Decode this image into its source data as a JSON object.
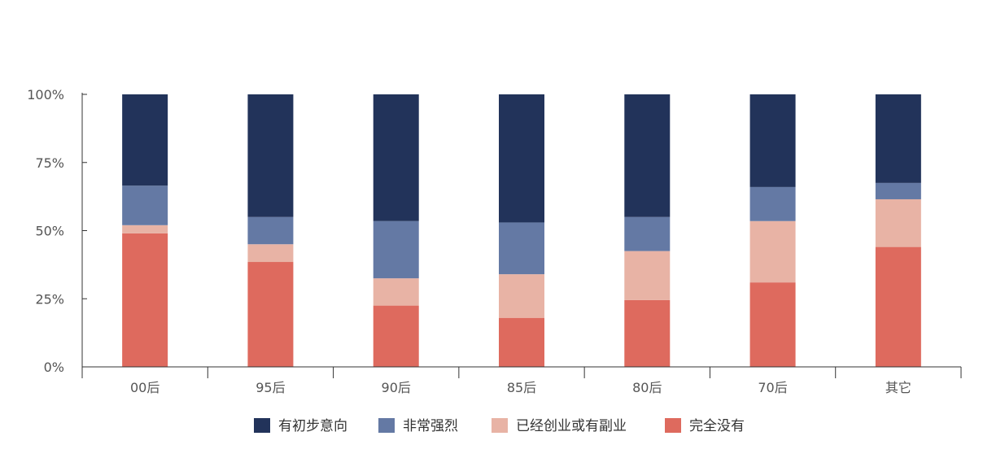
{
  "chart_data": {
    "type": "bar",
    "stacked": true,
    "categories": [
      "00后",
      "95后",
      "90后",
      "85后",
      "80后",
      "70后",
      "其它"
    ],
    "series": [
      {
        "name": "完全没有",
        "color": "#de6a5e",
        "values": [
          49,
          38.5,
          22.5,
          18,
          24.5,
          31,
          44
        ]
      },
      {
        "name": "已经创业或有副业",
        "color": "#e8b3a5",
        "values": [
          3,
          6.5,
          10,
          16,
          18,
          22.5,
          17.5
        ]
      },
      {
        "name": "非常强烈",
        "color": "#6479a4",
        "values": [
          14.5,
          10,
          21,
          19,
          12.5,
          12.5,
          6
        ]
      },
      {
        "name": "有初步意向",
        "color": "#22335a",
        "values": [
          33.5,
          45,
          46.5,
          47,
          45,
          34,
          32.5
        ]
      }
    ],
    "legend_order": [
      "有初步意向",
      "非常强烈",
      "已经创业或有副业",
      "完全没有"
    ],
    "yticks": [
      "0%",
      "25%",
      "50%",
      "75%",
      "100%"
    ],
    "ylim": [
      0,
      100
    ],
    "legend_position": "bottom-center",
    "grid": false
  }
}
